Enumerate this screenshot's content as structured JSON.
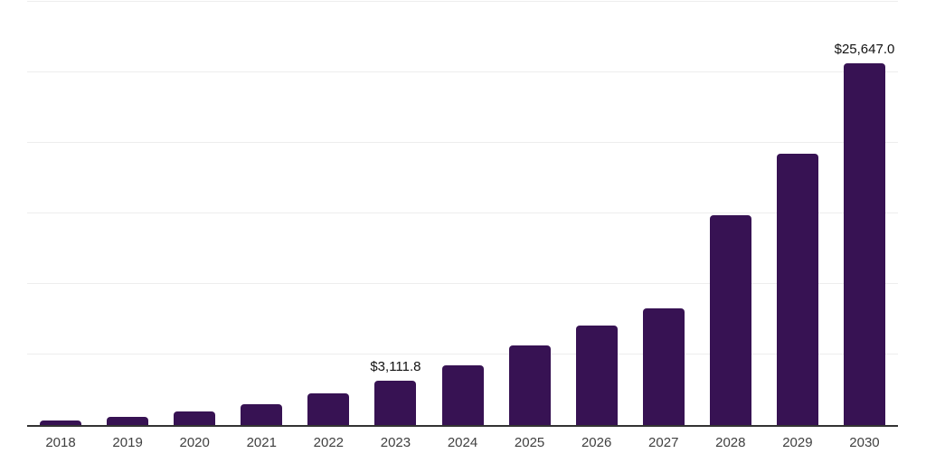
{
  "chart_data": {
    "type": "bar",
    "title": "",
    "xlabel": "",
    "ylabel": "",
    "categories": [
      "2018",
      "2019",
      "2020",
      "2021",
      "2022",
      "2023",
      "2024",
      "2025",
      "2026",
      "2027",
      "2028",
      "2029",
      "2030"
    ],
    "values": [
      350,
      600,
      950,
      1450,
      2250,
      3111.8,
      4200,
      5650,
      7050,
      8300,
      14900,
      19200,
      25647.0
    ],
    "value_labels": [
      "",
      "",
      "",
      "",
      "",
      "$3,111.8",
      "",
      "",
      "",
      "",
      "",
      "",
      "$25,647.0"
    ],
    "ylim": [
      0,
      30000
    ],
    "gridline_step": 5000,
    "grid": true,
    "legend": "none",
    "colors": {
      "bar": "#371253",
      "axis": "#333333",
      "gridline": "#ededed",
      "tick_label": "#404040",
      "value_label": "#121212",
      "background": "#ffffff"
    }
  }
}
